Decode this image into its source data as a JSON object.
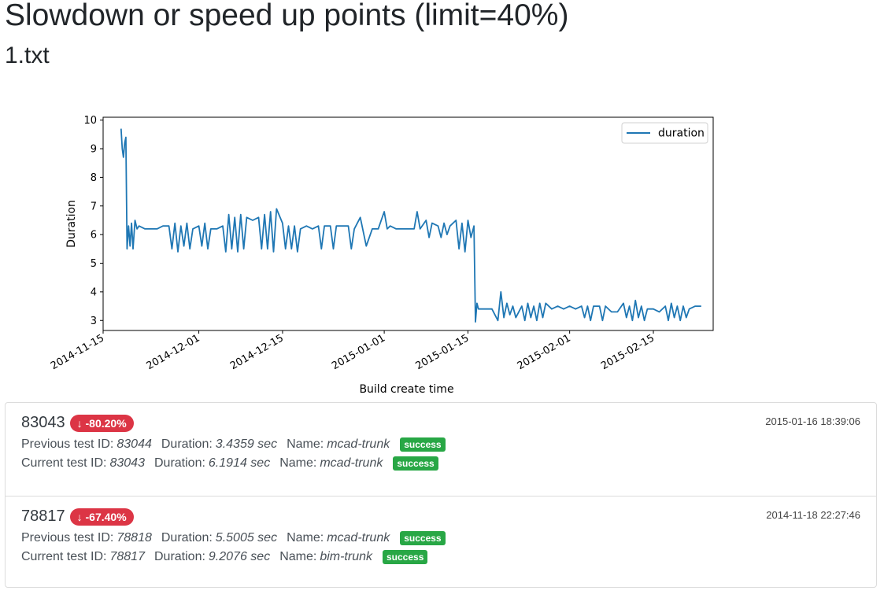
{
  "page": {
    "title": "Slowdown or speed up points (limit=40%)",
    "subtitle": "1.txt"
  },
  "chart_data": {
    "type": "line",
    "xlabel": "Build create time",
    "ylabel": "Duration",
    "x_type": "date",
    "xlim": [
      "2014-11-15",
      "2015-02-25"
    ],
    "ylim": [
      2.65,
      10.1
    ],
    "yticks": [
      3,
      4,
      5,
      6,
      7,
      8,
      9,
      10
    ],
    "xticks": [
      "2014-11-15",
      "2014-12-01",
      "2014-12-15",
      "2015-01-01",
      "2015-01-15",
      "2015-02-01",
      "2015-02-15"
    ],
    "legend": "top-right",
    "grid": false,
    "series": [
      {
        "name": "duration",
        "color": "#1f77b4",
        "points": [
          [
            "2014-11-18",
            9.7
          ],
          [
            "2014-11-18",
            9.0
          ],
          [
            "2014-11-18",
            8.7
          ],
          [
            "2014-11-18",
            9.2
          ],
          [
            "2014-11-18",
            9.4
          ],
          [
            "2014-11-19",
            5.5
          ],
          [
            "2014-11-19",
            6.3
          ],
          [
            "2014-11-19",
            5.6
          ],
          [
            "2014-11-19",
            6.4
          ],
          [
            "2014-11-20",
            5.5
          ],
          [
            "2014-11-20",
            6.5
          ],
          [
            "2014-11-20",
            6.2
          ],
          [
            "2014-11-21",
            6.3
          ],
          [
            "2014-11-22",
            6.2
          ],
          [
            "2014-11-23",
            6.2
          ],
          [
            "2014-11-24",
            6.2
          ],
          [
            "2014-11-25",
            6.3
          ],
          [
            "2014-11-26",
            6.3
          ],
          [
            "2014-11-26",
            5.5
          ],
          [
            "2014-11-27",
            6.4
          ],
          [
            "2014-11-27",
            5.4
          ],
          [
            "2014-11-28",
            6.3
          ],
          [
            "2014-11-28",
            5.6
          ],
          [
            "2014-11-29",
            6.4
          ],
          [
            "2014-11-29",
            5.5
          ],
          [
            "2014-11-30",
            6.2
          ],
          [
            "2014-12-01",
            6.3
          ],
          [
            "2014-12-01",
            5.6
          ],
          [
            "2014-12-02",
            6.4
          ],
          [
            "2014-12-02",
            5.5
          ],
          [
            "2014-12-03",
            6.2
          ],
          [
            "2014-12-04",
            6.2
          ],
          [
            "2014-12-05",
            6.3
          ],
          [
            "2014-12-05",
            5.4
          ],
          [
            "2014-12-06",
            6.7
          ],
          [
            "2014-12-06",
            5.5
          ],
          [
            "2014-12-07",
            6.6
          ],
          [
            "2014-12-07",
            5.4
          ],
          [
            "2014-12-08",
            6.7
          ],
          [
            "2014-12-08",
            5.5
          ],
          [
            "2014-12-09",
            6.6
          ],
          [
            "2014-12-10",
            6.5
          ],
          [
            "2014-12-11",
            6.6
          ],
          [
            "2014-12-11",
            5.5
          ],
          [
            "2014-12-12",
            6.7
          ],
          [
            "2014-12-12",
            5.5
          ],
          [
            "2014-12-13",
            6.8
          ],
          [
            "2014-12-13",
            5.4
          ],
          [
            "2014-12-14",
            6.9
          ],
          [
            "2014-12-15",
            6.4
          ],
          [
            "2014-12-15",
            5.5
          ],
          [
            "2014-12-16",
            6.3
          ],
          [
            "2014-12-16",
            5.5
          ],
          [
            "2014-12-17",
            6.3
          ],
          [
            "2014-12-17",
            5.4
          ],
          [
            "2014-12-18",
            6.2
          ],
          [
            "2014-12-19",
            6.3
          ],
          [
            "2014-12-20",
            6.2
          ],
          [
            "2014-12-21",
            6.3
          ],
          [
            "2014-12-21",
            5.5
          ],
          [
            "2014-12-22",
            6.3
          ],
          [
            "2014-12-23",
            6.3
          ],
          [
            "2014-12-23",
            5.5
          ],
          [
            "2014-12-24",
            6.3
          ],
          [
            "2014-12-25",
            6.3
          ],
          [
            "2014-12-26",
            6.3
          ],
          [
            "2014-12-26",
            5.5
          ],
          [
            "2014-12-27",
            6.2
          ],
          [
            "2014-12-28",
            6.6
          ],
          [
            "2014-12-29",
            5.6
          ],
          [
            "2014-12-30",
            6.2
          ],
          [
            "2014-12-31",
            6.2
          ],
          [
            "2015-01-01",
            6.8
          ],
          [
            "2015-01-01",
            6.2
          ],
          [
            "2015-01-02",
            6.3
          ],
          [
            "2015-01-03",
            6.2
          ],
          [
            "2015-01-04",
            6.2
          ],
          [
            "2015-01-05",
            6.2
          ],
          [
            "2015-01-06",
            6.2
          ],
          [
            "2015-01-06",
            6.8
          ],
          [
            "2015-01-07",
            6.2
          ],
          [
            "2015-01-08",
            6.5
          ],
          [
            "2015-01-08",
            5.9
          ],
          [
            "2015-01-09",
            6.4
          ],
          [
            "2015-01-10",
            6.3
          ],
          [
            "2015-01-10",
            5.9
          ],
          [
            "2015-01-11",
            6.4
          ],
          [
            "2015-01-11",
            6.0
          ],
          [
            "2015-01-12",
            6.3
          ],
          [
            "2015-01-13",
            6.5
          ],
          [
            "2015-01-13",
            5.5
          ],
          [
            "2015-01-14",
            6.4
          ],
          [
            "2015-01-14",
            5.4
          ],
          [
            "2015-01-15",
            6.5
          ],
          [
            "2015-01-15",
            5.9
          ],
          [
            "2015-01-16",
            6.3
          ],
          [
            "2015-01-16",
            2.95
          ],
          [
            "2015-01-16",
            3.6
          ],
          [
            "2015-01-16",
            3.4
          ],
          [
            "2015-01-17",
            3.4
          ],
          [
            "2015-01-18",
            3.4
          ],
          [
            "2015-01-19",
            3.4
          ],
          [
            "2015-01-20",
            3.0
          ],
          [
            "2015-01-20",
            4.0
          ],
          [
            "2015-01-21",
            3.1
          ],
          [
            "2015-01-21",
            3.6
          ],
          [
            "2015-01-22",
            3.2
          ],
          [
            "2015-01-22",
            3.5
          ],
          [
            "2015-01-23",
            3.1
          ],
          [
            "2015-01-24",
            3.5
          ],
          [
            "2015-01-24",
            3.0
          ],
          [
            "2015-01-25",
            3.6
          ],
          [
            "2015-01-25",
            3.1
          ],
          [
            "2015-01-26",
            3.5
          ],
          [
            "2015-01-26",
            3.0
          ],
          [
            "2015-01-27",
            3.6
          ],
          [
            "2015-01-27",
            3.1
          ],
          [
            "2015-01-28",
            3.6
          ],
          [
            "2015-01-29",
            3.4
          ],
          [
            "2015-01-30",
            3.5
          ],
          [
            "2015-01-31",
            3.4
          ],
          [
            "2015-02-01",
            3.5
          ],
          [
            "2015-02-02",
            3.4
          ],
          [
            "2015-02-03",
            3.5
          ],
          [
            "2015-02-03",
            3.1
          ],
          [
            "2015-02-04",
            3.5
          ],
          [
            "2015-02-04",
            3.0
          ],
          [
            "2015-02-05",
            3.5
          ],
          [
            "2015-02-06",
            3.5
          ],
          [
            "2015-02-06",
            3.0
          ],
          [
            "2015-02-07",
            3.5
          ],
          [
            "2015-02-08",
            3.3
          ],
          [
            "2015-02-09",
            3.3
          ],
          [
            "2015-02-10",
            3.6
          ],
          [
            "2015-02-10",
            3.1
          ],
          [
            "2015-02-11",
            3.5
          ],
          [
            "2015-02-11",
            3.0
          ],
          [
            "2015-02-12",
            3.7
          ],
          [
            "2015-02-12",
            3.1
          ],
          [
            "2015-02-13",
            3.5
          ],
          [
            "2015-02-13",
            3.0
          ],
          [
            "2015-02-14",
            3.4
          ],
          [
            "2015-02-15",
            3.4
          ],
          [
            "2015-02-16",
            3.3
          ],
          [
            "2015-02-17",
            3.5
          ],
          [
            "2015-02-17",
            3.0
          ],
          [
            "2015-02-18",
            3.6
          ],
          [
            "2015-02-18",
            3.1
          ],
          [
            "2015-02-19",
            3.5
          ],
          [
            "2015-02-19",
            3.0
          ],
          [
            "2015-02-20",
            3.5
          ],
          [
            "2015-02-20",
            3.1
          ],
          [
            "2015-02-21",
            3.4
          ],
          [
            "2015-02-22",
            3.5
          ],
          [
            "2015-02-23",
            3.5
          ]
        ]
      }
    ]
  },
  "results": [
    {
      "build_id": "83043",
      "change": "↓ -80.20%",
      "timestamp": "2015-01-16 18:39:06",
      "previous": {
        "label": "Previous test ID:",
        "id": "83044",
        "duration_label": "Duration:",
        "duration": "3.4359 sec",
        "name_label": "Name:",
        "name": "mcad-trunk",
        "status": "success"
      },
      "current": {
        "label": "Current test ID:",
        "id": "83043",
        "duration_label": "Duration:",
        "duration": "6.1914 sec",
        "name_label": "Name:",
        "name": "mcad-trunk",
        "status": "success"
      }
    },
    {
      "build_id": "78817",
      "change": "↓ -67.40%",
      "timestamp": "2014-11-18 22:27:46",
      "previous": {
        "label": "Previous test ID:",
        "id": "78818",
        "duration_label": "Duration:",
        "duration": "5.5005 sec",
        "name_label": "Name:",
        "name": "mcad-trunk",
        "status": "success"
      },
      "current": {
        "label": "Current test ID:",
        "id": "78817",
        "duration_label": "Duration:",
        "duration": "9.2076 sec",
        "name_label": "Name:",
        "name": "bim-trunk",
        "status": "success"
      }
    }
  ]
}
